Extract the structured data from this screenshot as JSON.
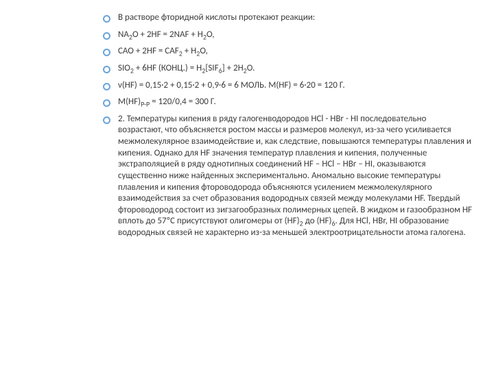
{
  "text_color": "#3b3b3b",
  "bullet_border_color": "#6aa4d9",
  "background_color": "#ffffff",
  "items": [
    "В растворе фторидной кислоты протекают реакции:",
    "NA₂O + 2HF = 2NAF + H₂O,",
    "CAO + 2HF = CAF₂ + H₂O,",
    "SIO₂ + 6HF (КОНЦ.) = H₂[SIF₆] + 2H₂O.",
    "ν(HF) = 0,15·2 + 0,15·2 + 0,9·6 = 6 МОЛЬ. M(HF) = 6·20 = 120 Г.",
    "M(HF)P-P = 120/0,4 = 300 Г.",
    "2. Температуры кипения в ряду галогенводородов HCl - HBr - HI последовательно возрастают, что объясняется ростом массы и размеров молекул, из-за чего усиливается межмолекулярное взаимодействие и, как следствие, повышаются температуры плавления и кипения. Однако для HF значения температур плавления и кипения, полученные экстраполяцией в ряду однотипных соединений HF – HCl – HBr – HI, оказываются существенно ниже найденных экспериментально. Аномально высокие температуры плавления и кипения фтороводорода объясняются усилением межмолекулярного взаимодействия за счет образования водородных связей между молекулами HF. Твердый фтороводород состоит из зигзагообразных полимерных цепей. В жидком и газообразном HF вплоть до 57°C присутствуют олигомеры от (HF)₂ до (HF)₆. Для HCl, HBr, HI образование водородных связей не характерно из-за меньшей электроотрицательности атома галогена."
  ],
  "items_html": [
    "В растворе фторидной кислоты протекают реакции:",
    "NA<span class='sub'>2</span>O + 2HF = 2NAF + H<span class='sub'>2</span>O,",
    "CAO + 2HF = CAF<span class='sub'>2</span> + H<span class='sub'>2</span>O,",
    "SIO<span class='sub'>2</span> + 6HF (КОНЦ.) = H<span class='sub'>2</span>[SIF<span class='sub'>6</span>] + 2H<span class='sub'>2</span>O.",
    "ν(HF) = 0,15·2 + 0,15·2 + 0,9·6 = 6 МОЛЬ. M(HF) = 6·20 = 120 Г.",
    "M(HF)<span class='sub'>P-P</span> = 120/0,4 = 300 Г.",
    "2. Температуры кипения в ряду галогенводородов HCl - HBr - HI последовательно возрастают, что объясняется ростом массы и размеров молекул, из-за чего усиливается межмолекулярное взаимодействие и, как следствие, повышаются температуры плавления и кипения. Однако для HF значения температур плавления и кипения, полученные экстраполяцией в ряду однотипных соединений HF – HCl – HBr – HI, оказываются существенно ниже найденных экспериментально. Аномально высокие температуры плавления и кипения фтороводорода объясняются усилением межмолекулярного взаимодействия за счет образования водородных связей между молекулами HF. Твердый фтороводород состоит из зигзагообразных полимерных цепей. В жидком и газообразном HF вплоть до 57ºC присутствуют олигомеры от (HF)<span class='sub'>2</span> до (HF)<span class='sub'>6</span>. Для HCl, HBr, HI образование водородных связей не характерно из-за меньшей электроотрицательности атома галогена."
  ]
}
